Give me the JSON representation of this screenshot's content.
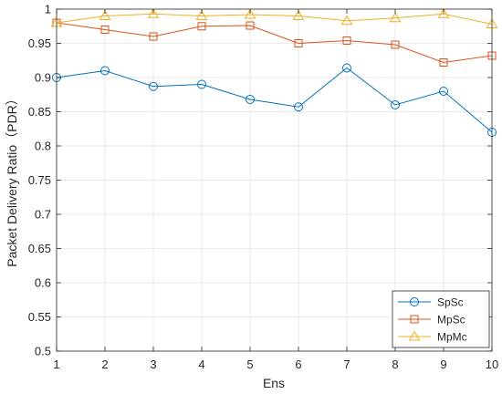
{
  "chart_data": {
    "type": "line",
    "xlabel": "Ens",
    "ylabel": "Packet Delivery Ratio（PDR）",
    "x": [
      1,
      2,
      3,
      4,
      5,
      6,
      7,
      8,
      9,
      10
    ],
    "xlim": [
      1,
      10
    ],
    "ylim": [
      0.5,
      1
    ],
    "yticks": [
      0.5,
      0.55,
      0.6,
      0.65,
      0.7,
      0.75,
      0.8,
      0.85,
      0.9,
      0.95,
      1
    ],
    "ytick_labels": [
      "0.5",
      "0.55",
      "0.6",
      "0.65",
      "0.7",
      "0.75",
      "0.8",
      "0.85",
      "0.9",
      "0.95",
      "1"
    ],
    "xtick_labels": [
      "1",
      "2",
      "3",
      "4",
      "5",
      "6",
      "7",
      "8",
      "9",
      "10"
    ],
    "grid": true,
    "legend_position": "bottom-right",
    "series": [
      {
        "name": "SpSc",
        "color": "#0072BD",
        "marker": "circle",
        "values": [
          0.9,
          0.91,
          0.887,
          0.89,
          0.868,
          0.857,
          0.914,
          0.86,
          0.88,
          0.82
        ]
      },
      {
        "name": "MpSc",
        "color": "#D95319",
        "marker": "square",
        "values": [
          0.98,
          0.97,
          0.96,
          0.975,
          0.976,
          0.95,
          0.954,
          0.948,
          0.922,
          0.932
        ]
      },
      {
        "name": "MpMc",
        "color": "#EDB120",
        "marker": "triangle",
        "values": [
          0.98,
          0.99,
          0.993,
          0.99,
          0.992,
          0.99,
          0.983,
          0.987,
          0.993,
          0.978
        ]
      }
    ]
  }
}
